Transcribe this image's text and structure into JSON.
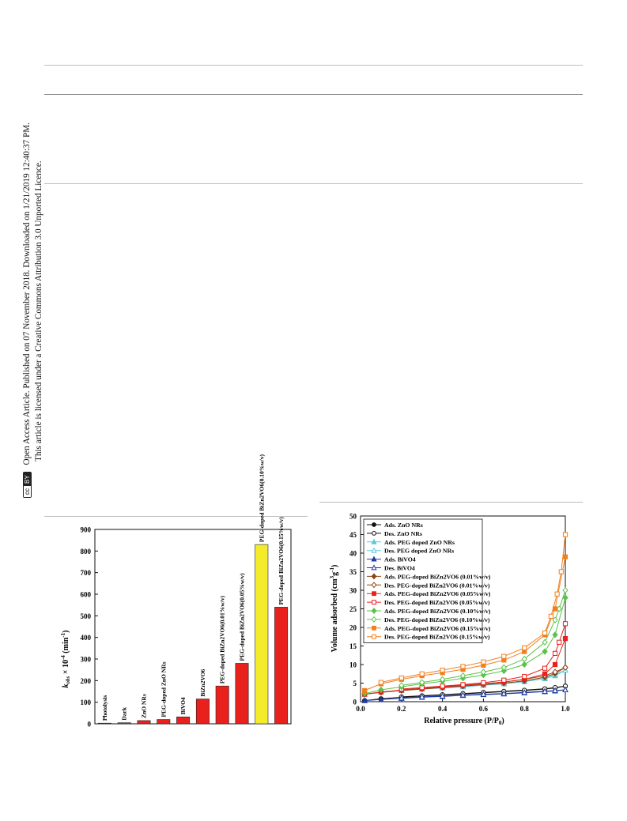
{
  "side_notice": {
    "line1": "Open Access Article. Published on 07 November 2018. Downloaded on 1/21/2019 12:40:37 PM.",
    "line2": "This article is licensed under a Creative Commons Attribution 3.0 Unported Licence.",
    "badge_cc": "cc",
    "badge_by": "BY"
  },
  "chart_data": [
    {
      "type": "bar",
      "ylabel_main": "k",
      "ylabel_sub": "obs",
      "ylabel_rest": " × 10",
      "ylabel_sup": "-4",
      "ylabel_unit": " (min",
      "ylabel_unit_sup": "-1",
      "ylabel_close": ")",
      "ylim": [
        0,
        900
      ],
      "yticks": [
        "0",
        "100",
        "200",
        "300",
        "400",
        "500",
        "600",
        "700",
        "800",
        "900"
      ],
      "categories": [
        "Photolysis",
        "Dark",
        "ZnO NRs",
        "PEG-doped ZnO NRs",
        "BiVO4",
        "BiZn2VO6",
        "PEG-doped BiZn2VO6(0.01%w/v)",
        "PEG-doped BiZn2VO6(0.05%w/v)",
        "PEG-doped BiZn2VO6(0.10%w/v)",
        "PEG-doped BiZn2VO6(0.15%w/v)"
      ],
      "values": [
        3,
        5,
        15,
        20,
        32,
        115,
        175,
        280,
        830,
        540
      ],
      "colors": [
        "#e8211c",
        "#e8211c",
        "#e8211c",
        "#e8211c",
        "#e8211c",
        "#e8211c",
        "#e8211c",
        "#e8211c",
        "#f4ec2b",
        "#e8211c"
      ]
    },
    {
      "type": "line",
      "xlabel": "Relative pressure  (P/P",
      "xlabel_sub": "0",
      "xlabel_close": ")",
      "ylabel": "Volume adsorbed (cm",
      "ylabel_sup": "3",
      "ylabel_mid": "g",
      "ylabel_sup2": "-1",
      "ylabel_close": ")",
      "xlim": [
        0,
        1.0
      ],
      "ylim": [
        0,
        50
      ],
      "xticks": [
        "0.0",
        "0.2",
        "0.4",
        "0.6",
        "0.8",
        "1.0"
      ],
      "yticks": [
        "0",
        "5",
        "10",
        "15",
        "20",
        "25",
        "30",
        "35",
        "40",
        "45",
        "50"
      ],
      "series": [
        {
          "name": "Ads. ZnO NRs",
          "color": "#111111",
          "marker": "circle",
          "filled": true,
          "x": [
            0.02,
            0.1,
            0.2,
            0.3,
            0.4,
            0.5,
            0.6,
            0.7,
            0.8,
            0.9,
            0.95,
            1.0
          ],
          "y": [
            0.3,
            0.8,
            1.2,
            1.5,
            1.8,
            2.1,
            2.4,
            2.7,
            3.0,
            3.4,
            3.7,
            4.2
          ]
        },
        {
          "name": "Des. ZnO NRs",
          "color": "#111111",
          "marker": "circle",
          "filled": false,
          "x": [
            1.0,
            0.95,
            0.9,
            0.8,
            0.7,
            0.6,
            0.5,
            0.4,
            0.3,
            0.2
          ],
          "y": [
            4.2,
            3.8,
            3.5,
            3.1,
            2.8,
            2.5,
            2.2,
            1.9,
            1.6,
            1.3
          ]
        },
        {
          "name": "Ads. PEG doped ZnO NRs",
          "color": "#5bc8d8",
          "marker": "triangle",
          "filled": true,
          "x": [
            0.02,
            0.1,
            0.2,
            0.3,
            0.4,
            0.5,
            0.6,
            0.7,
            0.8,
            0.9,
            0.95,
            1.0
          ],
          "y": [
            2.0,
            2.6,
            3.0,
            3.4,
            3.7,
            4.0,
            4.4,
            4.8,
            5.4,
            6.2,
            7.0,
            8.5
          ]
        },
        {
          "name": "Des. PEG doped ZnO NRs",
          "color": "#5bc8d8",
          "marker": "triangle",
          "filled": false,
          "x": [
            1.0,
            0.95,
            0.9,
            0.8,
            0.7,
            0.6,
            0.5,
            0.4,
            0.3,
            0.2
          ],
          "y": [
            8.5,
            7.3,
            6.5,
            5.6,
            5.0,
            4.6,
            4.2,
            3.9,
            3.5,
            3.1
          ]
        },
        {
          "name": "Ads. BiVO4",
          "color": "#1f3aa0",
          "marker": "triangle",
          "filled": true,
          "x": [
            0.02,
            0.1,
            0.2,
            0.3,
            0.4,
            0.5,
            0.6,
            0.7,
            0.8,
            0.9,
            0.95,
            1.0
          ],
          "y": [
            0.3,
            0.6,
            0.9,
            1.2,
            1.4,
            1.7,
            1.9,
            2.1,
            2.4,
            2.7,
            2.9,
            3.2
          ]
        },
        {
          "name": "Des. BiVO4",
          "color": "#1f3aa0",
          "marker": "triangle",
          "filled": false,
          "x": [
            1.0,
            0.95,
            0.9,
            0.8,
            0.7,
            0.6,
            0.5,
            0.4,
            0.3,
            0.2
          ],
          "y": [
            3.2,
            3.0,
            2.8,
            2.5,
            2.2,
            2.0,
            1.8,
            1.5,
            1.3,
            1.0
          ]
        },
        {
          "name": "Ads. PEG-doped  BiZn2VO6 (0.01%w/v)",
          "color": "#8b4513",
          "marker": "diamond",
          "filled": true,
          "x": [
            0.02,
            0.1,
            0.2,
            0.3,
            0.4,
            0.5,
            0.6,
            0.7,
            0.8,
            0.9,
            0.95,
            1.0
          ],
          "y": [
            2.0,
            2.5,
            3.0,
            3.4,
            3.8,
            4.2,
            4.6,
            5.0,
            5.6,
            6.6,
            7.6,
            9.2
          ]
        },
        {
          "name": "Des. PEG-doped  BiZn2VO6 (0.01%w/v)",
          "color": "#8b4513",
          "marker": "diamond",
          "filled": false,
          "x": [
            1.0,
            0.95,
            0.9,
            0.8,
            0.7,
            0.6,
            0.5,
            0.4,
            0.3,
            0.2
          ],
          "y": [
            9.2,
            8.0,
            7.0,
            6.0,
            5.3,
            4.8,
            4.4,
            4.0,
            3.6,
            3.2
          ]
        },
        {
          "name": "Ads. PEG-doped  BiZn2VO6 (0.05%w/v)",
          "color": "#e8211c",
          "marker": "square",
          "filled": true,
          "x": [
            0.02,
            0.1,
            0.2,
            0.3,
            0.4,
            0.5,
            0.6,
            0.7,
            0.8,
            0.9,
            0.95,
            1.0
          ],
          "y": [
            2.0,
            2.6,
            3.1,
            3.5,
            4.0,
            4.4,
            4.8,
            5.3,
            6.0,
            7.5,
            10.0,
            17.0
          ]
        },
        {
          "name": "Des. PEG-doped  BiZn2VO6 (0.05%w/v)",
          "color": "#e8211c",
          "marker": "square",
          "filled": false,
          "x": [
            1.0,
            0.97,
            0.95,
            0.9,
            0.8,
            0.7,
            0.6,
            0.5,
            0.4,
            0.3,
            0.2
          ],
          "y": [
            21.0,
            16.0,
            13.0,
            9.0,
            6.8,
            5.8,
            5.1,
            4.6,
            4.2,
            3.8,
            3.4
          ]
        },
        {
          "name": "Ads. PEG-doped  BiZn2VO6 (0.10%w/v)",
          "color": "#5ac34a",
          "marker": "diamond",
          "filled": true,
          "x": [
            0.02,
            0.1,
            0.2,
            0.3,
            0.4,
            0.5,
            0.6,
            0.7,
            0.8,
            0.9,
            0.95,
            1.0
          ],
          "y": [
            2.2,
            3.2,
            4.0,
            4.8,
            5.5,
            6.3,
            7.2,
            8.3,
            10.0,
            13.5,
            18.0,
            28.0
          ]
        },
        {
          "name": "Des. PEG-doped  BiZn2VO6 (0.10%w/v)",
          "color": "#5ac34a",
          "marker": "diamond",
          "filled": false,
          "x": [
            1.0,
            0.97,
            0.95,
            0.9,
            0.8,
            0.7,
            0.6,
            0.5,
            0.4,
            0.3,
            0.2
          ],
          "y": [
            30.0,
            25.0,
            22.0,
            16.0,
            11.5,
            9.2,
            8.0,
            7.0,
            6.0,
            5.2,
            4.4
          ]
        },
        {
          "name": "Ads. PEG-doped  BiZn2VO6 (0.15%w/v)",
          "color": "#f07f1e",
          "marker": "square",
          "filled": true,
          "x": [
            0.02,
            0.1,
            0.2,
            0.3,
            0.4,
            0.5,
            0.6,
            0.7,
            0.8,
            0.9,
            0.95,
            1.0
          ],
          "y": [
            3.0,
            4.8,
            6.0,
            7.0,
            7.8,
            8.7,
            9.8,
            11.2,
            13.5,
            18.0,
            25.0,
            39.0
          ]
        },
        {
          "name": "Des. PEG-doped  BiZn2VO6 (0.15%w/v)",
          "color": "#f07f1e",
          "marker": "square",
          "filled": false,
          "x": [
            1.0,
            0.98,
            0.96,
            0.93,
            0.9,
            0.8,
            0.7,
            0.6,
            0.5,
            0.4,
            0.3,
            0.2,
            0.1
          ],
          "y": [
            45.0,
            35.0,
            29.0,
            23.0,
            18.5,
            14.5,
            12.2,
            10.7,
            9.5,
            8.5,
            7.5,
            6.4,
            5.2
          ]
        }
      ]
    }
  ]
}
